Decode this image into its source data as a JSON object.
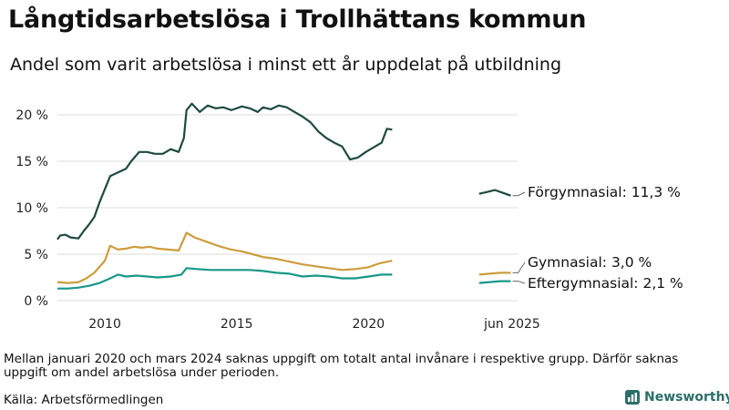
{
  "title": "Långtidsarbetslösa i Trollhättans kommun",
  "subtitle": "Andel som varit arbetslösa i minst ett år uppdelat på utbildning",
  "note": "Mellan januari 2020 och mars 2024 saknas uppgift om totalt antal invånare i respektive grupp. Därför saknas uppgift om andel arbetslösa under perioden.",
  "source": "Källa: Arbetsförmedlingen",
  "brand": {
    "name": "Newsworthy",
    "icon": "bar-chart-logo-icon"
  },
  "chart_data": {
    "type": "line",
    "ylabel": "",
    "xlabel": "",
    "ylim": [
      0,
      21
    ],
    "xlim": [
      2008.2,
      2026.8
    ],
    "y_ticks": [
      0,
      5,
      10,
      15,
      20
    ],
    "y_tick_labels": [
      "0 %",
      "5 %",
      "10 %",
      "15 %",
      "20 %"
    ],
    "x_ticks": [
      2010,
      2015,
      2020,
      2025.45
    ],
    "x_tick_labels": [
      "2010",
      "2015",
      "2020",
      "jun 2025"
    ],
    "grid": "horizontal",
    "series": [
      {
        "name": "Förgymnasial",
        "end_label": "Förgymnasial: 11,3 %",
        "color": "#1e4a40",
        "segments": [
          [
            [
              2008.2,
              6.6
            ],
            [
              2008.3,
              7.0
            ],
            [
              2008.5,
              7.1
            ],
            [
              2008.7,
              6.8
            ],
            [
              2009.0,
              6.7
            ],
            [
              2009.2,
              7.5
            ],
            [
              2009.4,
              8.2
            ],
            [
              2009.6,
              9.0
            ],
            [
              2009.8,
              10.6
            ],
            [
              2010.0,
              12.0
            ],
            [
              2010.2,
              13.4
            ],
            [
              2010.5,
              13.8
            ],
            [
              2010.8,
              14.2
            ],
            [
              2011.0,
              15.0
            ],
            [
              2011.3,
              16.0
            ],
            [
              2011.6,
              16.0
            ],
            [
              2011.9,
              15.8
            ],
            [
              2012.2,
              15.8
            ],
            [
              2012.5,
              16.3
            ],
            [
              2012.8,
              16.0
            ],
            [
              2013.0,
              17.5
            ],
            [
              2013.1,
              20.5
            ],
            [
              2013.3,
              21.2
            ],
            [
              2013.6,
              20.3
            ],
            [
              2013.9,
              21.0
            ],
            [
              2014.2,
              20.7
            ],
            [
              2014.5,
              20.8
            ],
            [
              2014.8,
              20.5
            ],
            [
              2015.2,
              20.9
            ],
            [
              2015.5,
              20.7
            ],
            [
              2015.8,
              20.3
            ],
            [
              2016.0,
              20.8
            ],
            [
              2016.3,
              20.6
            ],
            [
              2016.6,
              21.0
            ],
            [
              2016.9,
              20.8
            ],
            [
              2017.2,
              20.3
            ],
            [
              2017.5,
              19.8
            ],
            [
              2017.8,
              19.2
            ],
            [
              2018.1,
              18.2
            ],
            [
              2018.4,
              17.5
            ],
            [
              2018.7,
              17.0
            ],
            [
              2019.0,
              16.6
            ],
            [
              2019.3,
              15.2
            ],
            [
              2019.6,
              15.4
            ],
            [
              2019.9,
              16.0
            ],
            [
              2020.2,
              16.5
            ],
            [
              2020.5,
              17.0
            ],
            [
              2020.7,
              18.5
            ],
            [
              2020.9,
              18.4
            ]
          ],
          [
            [
              2024.2,
              11.5
            ],
            [
              2024.5,
              11.7
            ],
            [
              2024.8,
              11.9
            ],
            [
              2025.1,
              11.6
            ],
            [
              2025.4,
              11.3
            ]
          ]
        ]
      },
      {
        "name": "Gymnasial",
        "end_label": "Gymnasial:  3,0 %",
        "color": "#cd9d3c",
        "segments": [
          [
            [
              2008.2,
              2.0
            ],
            [
              2008.6,
              1.9
            ],
            [
              2009.0,
              2.0
            ],
            [
              2009.3,
              2.4
            ],
            [
              2009.6,
              3.0
            ],
            [
              2010.0,
              4.3
            ],
            [
              2010.2,
              5.9
            ],
            [
              2010.5,
              5.5
            ],
            [
              2010.8,
              5.6
            ],
            [
              2011.1,
              5.8
            ],
            [
              2011.4,
              5.7
            ],
            [
              2011.7,
              5.8
            ],
            [
              2012.0,
              5.6
            ],
            [
              2012.4,
              5.5
            ],
            [
              2012.8,
              5.4
            ],
            [
              2013.1,
              7.3
            ],
            [
              2013.4,
              6.8
            ],
            [
              2013.7,
              6.5
            ],
            [
              2014.0,
              6.2
            ],
            [
              2014.4,
              5.8
            ],
            [
              2014.8,
              5.5
            ],
            [
              2015.2,
              5.3
            ],
            [
              2015.6,
              5.0
            ],
            [
              2016.0,
              4.7
            ],
            [
              2016.5,
              4.5
            ],
            [
              2017.0,
              4.2
            ],
            [
              2017.5,
              3.9
            ],
            [
              2018.0,
              3.7
            ],
            [
              2018.5,
              3.5
            ],
            [
              2019.0,
              3.3
            ],
            [
              2019.5,
              3.4
            ],
            [
              2020.0,
              3.6
            ],
            [
              2020.4,
              4.0
            ],
            [
              2020.9,
              4.3
            ]
          ],
          [
            [
              2024.2,
              2.8
            ],
            [
              2024.6,
              2.9
            ],
            [
              2025.0,
              3.0
            ],
            [
              2025.4,
              3.0
            ]
          ]
        ]
      },
      {
        "name": "Eftergymnasial",
        "end_label": "Eftergymnasial:  2,1 %",
        "color": "#18988a",
        "segments": [
          [
            [
              2008.2,
              1.3
            ],
            [
              2008.6,
              1.3
            ],
            [
              2009.0,
              1.4
            ],
            [
              2009.4,
              1.6
            ],
            [
              2009.8,
              1.9
            ],
            [
              2010.2,
              2.4
            ],
            [
              2010.5,
              2.8
            ],
            [
              2010.8,
              2.6
            ],
            [
              2011.2,
              2.7
            ],
            [
              2011.6,
              2.6
            ],
            [
              2012.0,
              2.5
            ],
            [
              2012.5,
              2.6
            ],
            [
              2012.9,
              2.8
            ],
            [
              2013.1,
              3.5
            ],
            [
              2013.5,
              3.4
            ],
            [
              2014.0,
              3.3
            ],
            [
              2014.5,
              3.3
            ],
            [
              2015.0,
              3.3
            ],
            [
              2015.5,
              3.3
            ],
            [
              2016.0,
              3.2
            ],
            [
              2016.5,
              3.0
            ],
            [
              2017.0,
              2.9
            ],
            [
              2017.5,
              2.6
            ],
            [
              2018.0,
              2.7
            ],
            [
              2018.5,
              2.6
            ],
            [
              2019.0,
              2.4
            ],
            [
              2019.5,
              2.4
            ],
            [
              2020.0,
              2.6
            ],
            [
              2020.5,
              2.8
            ],
            [
              2020.9,
              2.8
            ]
          ],
          [
            [
              2024.2,
              1.9
            ],
            [
              2024.6,
              2.0
            ],
            [
              2025.0,
              2.1
            ],
            [
              2025.4,
              2.1
            ]
          ]
        ]
      }
    ]
  }
}
